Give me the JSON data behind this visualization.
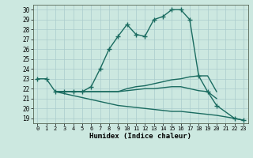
{
  "title": "",
  "xlabel": "Humidex (Indice chaleur)",
  "ylabel": "",
  "bg_color": "#cce8e0",
  "grid_color": "#aacccc",
  "line_color": "#1a6b60",
  "xlim": [
    -0.5,
    23.5
  ],
  "ylim": [
    18.5,
    30.5
  ],
  "yticks": [
    19,
    20,
    21,
    22,
    23,
    24,
    25,
    26,
    27,
    28,
    29,
    30
  ],
  "xticks": [
    0,
    1,
    2,
    3,
    4,
    5,
    6,
    7,
    8,
    9,
    10,
    11,
    12,
    13,
    14,
    15,
    16,
    17,
    18,
    19,
    20,
    21,
    22,
    23
  ],
  "lines": [
    {
      "x": [
        0,
        1,
        2,
        3,
        4,
        5,
        6,
        7,
        8,
        9,
        10,
        11,
        12,
        13,
        14,
        15,
        16,
        17,
        18,
        19,
        20,
        22,
        23
      ],
      "y": [
        23.0,
        23.0,
        21.7,
        21.7,
        21.7,
        21.7,
        22.2,
        24.0,
        26.0,
        27.3,
        28.5,
        27.5,
        27.3,
        29.0,
        29.3,
        30.0,
        30.0,
        29.0,
        23.3,
        21.7,
        20.3,
        19.0,
        18.8
      ],
      "marker": true
    },
    {
      "x": [
        2,
        3,
        4,
        5,
        6,
        7,
        8,
        9,
        10,
        11,
        12,
        13,
        14,
        15,
        16,
        17,
        18,
        19,
        20
      ],
      "y": [
        21.7,
        21.7,
        21.7,
        21.7,
        21.7,
        21.7,
        21.7,
        21.7,
        22.0,
        22.2,
        22.3,
        22.5,
        22.7,
        22.9,
        23.0,
        23.2,
        23.3,
        23.3,
        21.7
      ],
      "marker": false
    },
    {
      "x": [
        2,
        3,
        4,
        5,
        6,
        7,
        8,
        9,
        10,
        11,
        12,
        13,
        14,
        15,
        16,
        17,
        18,
        19,
        20
      ],
      "y": [
        21.7,
        21.7,
        21.7,
        21.7,
        21.7,
        21.7,
        21.7,
        21.7,
        21.8,
        21.9,
        22.0,
        22.0,
        22.1,
        22.2,
        22.2,
        22.0,
        21.8,
        21.7,
        21.0
      ],
      "marker": false
    },
    {
      "x": [
        2,
        3,
        4,
        5,
        6,
        7,
        8,
        9,
        10,
        11,
        12,
        13,
        14,
        15,
        16,
        17,
        18,
        19,
        20,
        22,
        23
      ],
      "y": [
        21.7,
        21.5,
        21.3,
        21.1,
        20.9,
        20.7,
        20.5,
        20.3,
        20.2,
        20.1,
        20.0,
        19.9,
        19.8,
        19.7,
        19.7,
        19.6,
        19.5,
        19.4,
        19.3,
        19.0,
        18.8
      ],
      "marker": false
    }
  ]
}
